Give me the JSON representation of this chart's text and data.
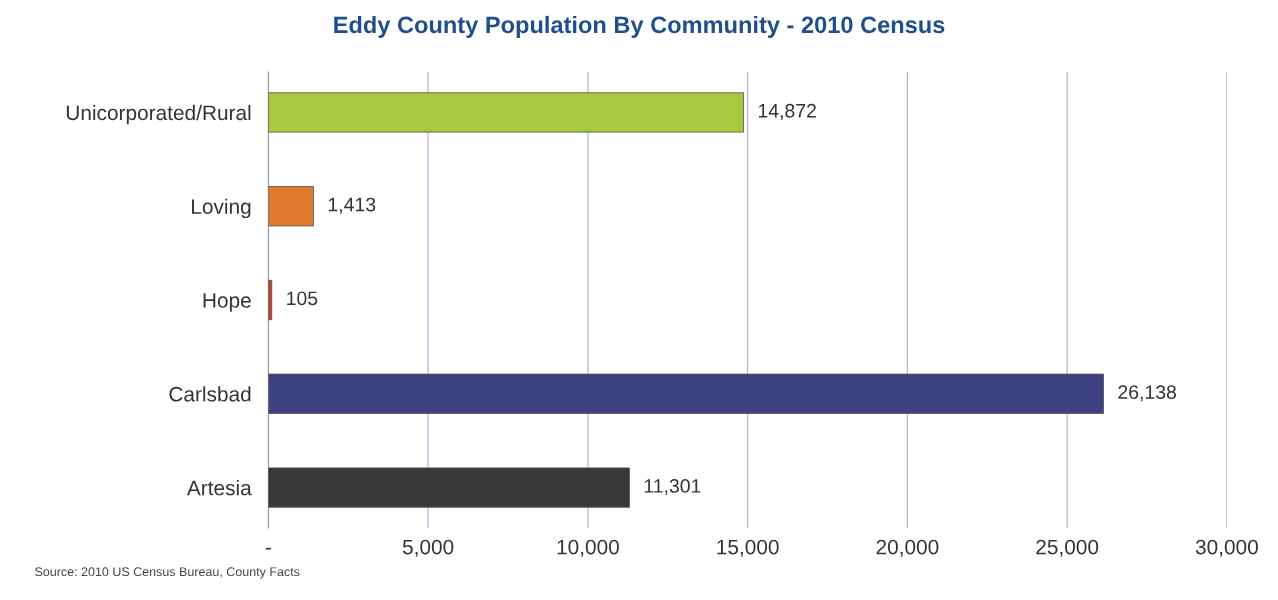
{
  "chart_data": {
    "type": "bar",
    "orientation": "horizontal",
    "title": "Eddy County Population By Community - 2010 Census",
    "categories": [
      "Unicorporated/Rural",
      "Loving",
      "Hope",
      "Carlsbad",
      "Artesia"
    ],
    "values": [
      14872,
      1413,
      105,
      26138,
      11301
    ],
    "colors": [
      "#a8c83e",
      "#e07b2e",
      "#c8392b",
      "#3e4180",
      "#3a3838"
    ],
    "value_labels": [
      "14,872",
      "1,413",
      "105",
      "26,138",
      "11,301"
    ],
    "xlim": [
      0,
      30000
    ],
    "xticks": [
      {
        "value": 0,
        "label": "-"
      },
      {
        "value": 5000,
        "label": "5,000"
      },
      {
        "value": 10000,
        "label": "10,000"
      },
      {
        "value": 15000,
        "label": "15,000"
      },
      {
        "value": 20000,
        "label": "20,000"
      },
      {
        "value": 25000,
        "label": "25,000"
      },
      {
        "value": 30000,
        "label": "30,000"
      }
    ],
    "grid": "x",
    "annotations": [
      "Source: 2010 US Census Bureau, County Facts"
    ]
  }
}
